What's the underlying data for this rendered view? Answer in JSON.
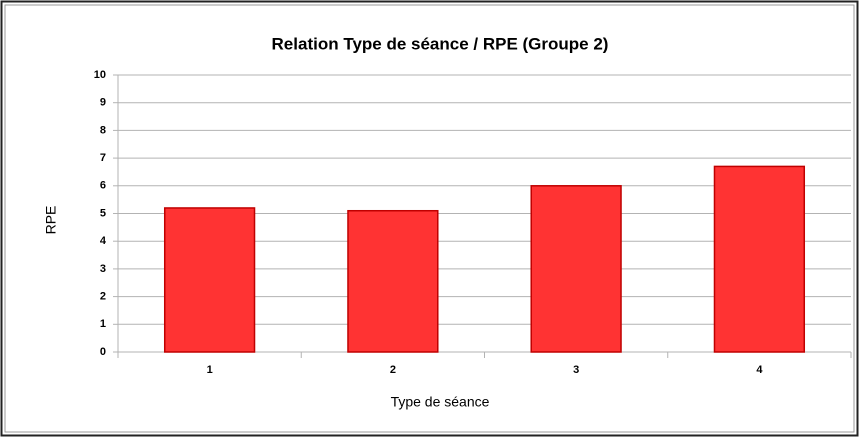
{
  "chart_data": {
    "type": "bar",
    "title": "Relation Type de séance / RPE (Groupe 2)",
    "xlabel": "Type de séance",
    "ylabel": "RPE",
    "categories": [
      "1",
      "2",
      "3",
      "4"
    ],
    "values": [
      5.2,
      5.1,
      6.0,
      6.7
    ],
    "color": "#ff3333",
    "ylim": [
      0,
      10
    ],
    "yticks": [
      0,
      1,
      2,
      3,
      4,
      5,
      6,
      7,
      8,
      9,
      10
    ],
    "grid": true
  }
}
